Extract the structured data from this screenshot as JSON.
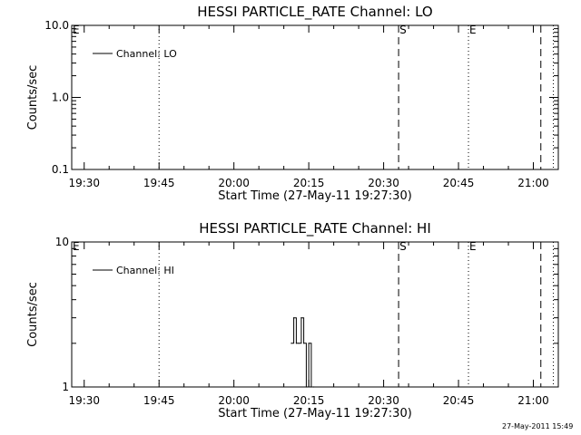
{
  "chart_data": [
    {
      "type": "line",
      "title": "HESSI PARTICLE_RATE Channel: LO",
      "xlabel": "Start Time (27-May-11 19:27:30)",
      "ylabel": "Counts/sec",
      "x_ticks": [
        "19:30",
        "19:45",
        "20:00",
        "20:15",
        "20:30",
        "20:45",
        "21:00"
      ],
      "x_range": [
        "19:27:30",
        "21:05:00"
      ],
      "y_scale": "log",
      "ylim": [
        0.1,
        10.0
      ],
      "y_ticks": [
        "10.0",
        "1.0",
        "0.1"
      ],
      "series": [
        {
          "name": "Channel: LO",
          "x": [],
          "y": []
        }
      ],
      "markers": [
        {
          "label": "E",
          "time": "19:27:30",
          "style": "none"
        },
        {
          "label": "",
          "time": "19:45:00",
          "style": "dotted"
        },
        {
          "label": "S",
          "time": "20:33:00",
          "style": "dashed"
        },
        {
          "label": "E",
          "time": "20:47:00",
          "style": "dotted"
        },
        {
          "label": "",
          "time": "21:01:30",
          "style": "dashed"
        },
        {
          "label": "",
          "time": "21:04:00",
          "style": "dotted"
        }
      ],
      "legend_position": "top-left",
      "grid": false
    },
    {
      "type": "line",
      "title": "HESSI PARTICLE_RATE Channel: HI",
      "xlabel": "Start Time (27-May-11 19:27:30)",
      "ylabel": "Counts/sec",
      "x_ticks": [
        "19:30",
        "19:45",
        "20:00",
        "20:15",
        "20:30",
        "20:45",
        "21:00"
      ],
      "x_range": [
        "19:27:30",
        "21:05:00"
      ],
      "y_scale": "log",
      "ylim": [
        1,
        10
      ],
      "y_ticks": [
        "10",
        "1"
      ],
      "series": [
        {
          "name": "Channel: HI",
          "x": [
            "20:11:30",
            "20:12:00",
            "20:12:30",
            "20:13:00",
            "20:13:30",
            "20:14:00",
            "20:14:30",
            "20:15:00",
            "20:15:30",
            "20:16:00"
          ],
          "y": [
            2,
            3,
            2,
            2,
            3,
            2,
            1,
            2,
            1,
            1
          ]
        }
      ],
      "markers": [
        {
          "label": "E",
          "time": "19:27:30",
          "style": "none"
        },
        {
          "label": "",
          "time": "19:45:00",
          "style": "dotted"
        },
        {
          "label": "S",
          "time": "20:33:00",
          "style": "dashed"
        },
        {
          "label": "E",
          "time": "20:47:00",
          "style": "dotted"
        },
        {
          "label": "",
          "time": "21:01:30",
          "style": "dashed"
        },
        {
          "label": "",
          "time": "21:04:00",
          "style": "dotted"
        }
      ],
      "legend_position": "top-left",
      "grid": false
    }
  ],
  "footer": {
    "timestamp": "27-May-2011 15:49"
  }
}
